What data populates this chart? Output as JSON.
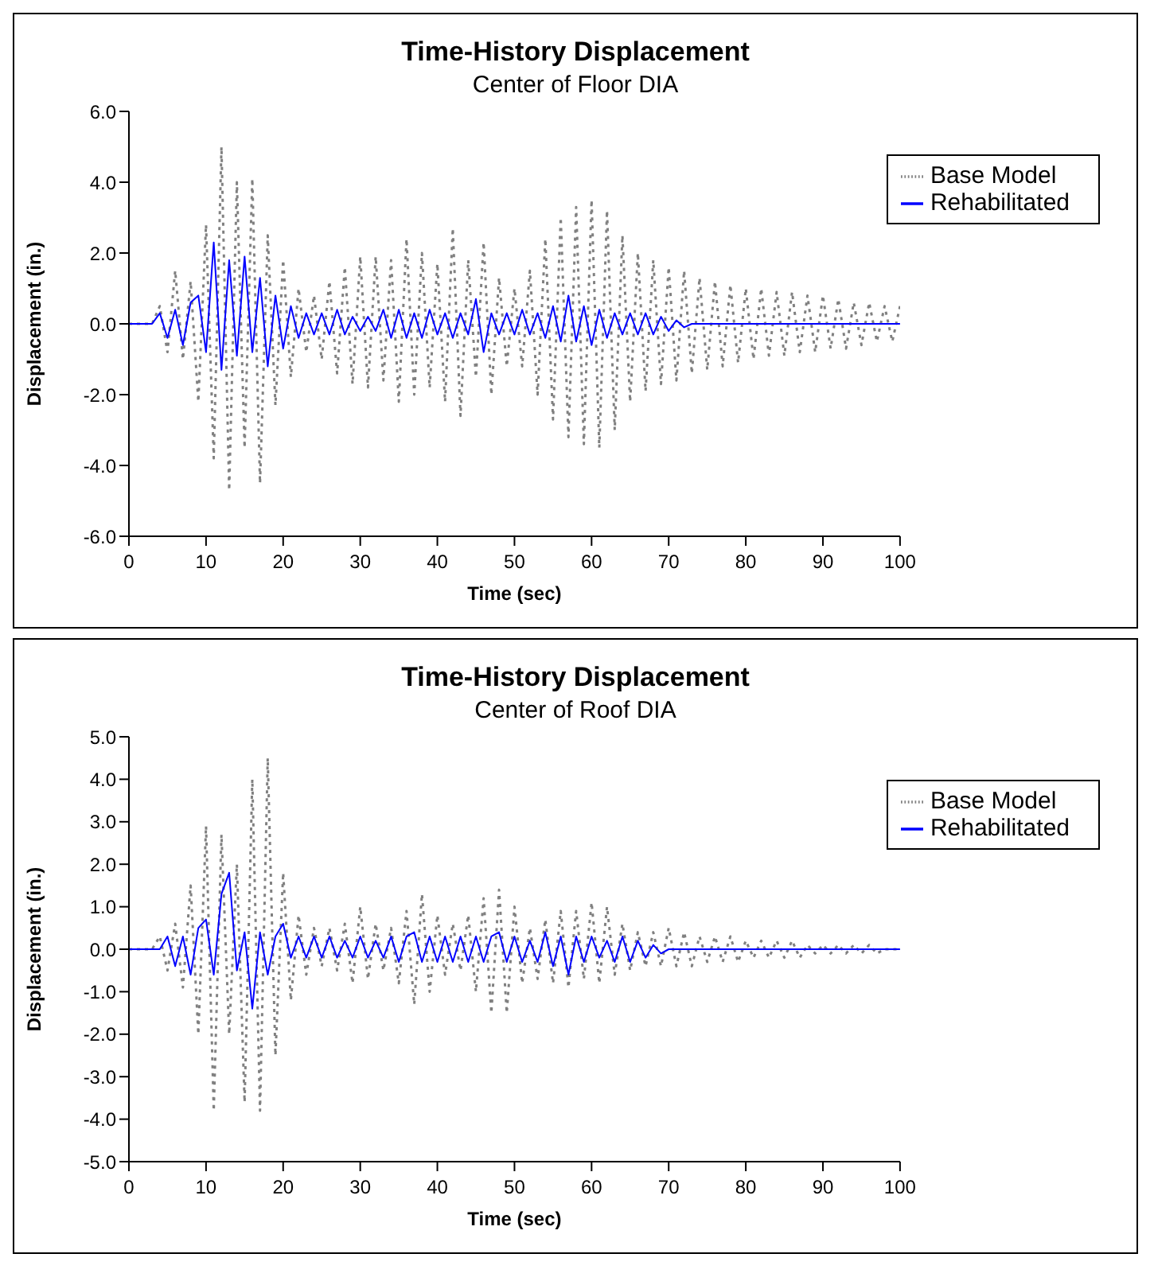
{
  "chart_data": [
    {
      "type": "line",
      "title": "Time-History Displacement",
      "subtitle": "Center of Floor DIA",
      "xlabel": "Time (sec)",
      "ylabel": "Displacement (in.)",
      "legend": "top right",
      "marker": "none",
      "x": [
        0,
        1,
        2,
        3,
        4,
        5,
        6,
        7,
        8,
        9,
        10,
        11,
        12,
        13,
        14,
        15,
        16,
        17,
        18,
        19,
        20,
        21,
        22,
        23,
        24,
        25,
        26,
        27,
        28,
        29,
        30,
        31,
        32,
        33,
        34,
        35,
        36,
        37,
        38,
        39,
        40,
        41,
        42,
        43,
        44,
        45,
        46,
        47,
        48,
        49,
        50,
        51,
        52,
        53,
        54,
        55,
        56,
        57,
        58,
        59,
        60,
        61,
        62,
        63,
        64,
        65,
        66,
        67,
        68,
        69,
        70,
        71,
        72,
        73,
        74,
        75,
        76,
        77,
        78,
        79,
        80,
        81,
        82,
        83,
        84,
        85,
        86,
        87,
        88,
        89,
        90,
        91,
        92,
        93,
        94,
        95,
        96,
        97,
        98,
        99,
        100
      ],
      "xlim": [
        0,
        100
      ],
      "xticks": [
        0,
        10,
        20,
        30,
        40,
        50,
        60,
        70,
        80,
        90,
        100
      ],
      "ylim": [
        -6,
        6
      ],
      "yticks": [
        {
          "value": -6,
          "label": "-6.0"
        },
        {
          "value": -4,
          "label": "-4.0"
        },
        {
          "value": -2,
          "label": "-2.0"
        },
        {
          "value": 0,
          "label": "0.0"
        },
        {
          "value": 2,
          "label": "2.0"
        },
        {
          "value": 4,
          "label": "4.0"
        },
        {
          "value": 6,
          "label": "6.0"
        }
      ],
      "series": [
        {
          "name": "Base Model",
          "color": "#808080",
          "line_style": "dotted",
          "values": [
            0,
            0,
            0,
            0,
            0.5,
            -0.8,
            1.5,
            -1.0,
            1.2,
            -2.2,
            2.8,
            -3.8,
            5.0,
            -4.7,
            4.0,
            -3.5,
            4.1,
            -4.5,
            2.5,
            -2.3,
            1.8,
            -1.5,
            1.0,
            -0.8,
            0.8,
            -1.0,
            1.2,
            -1.4,
            1.6,
            -1.7,
            1.9,
            -1.8,
            1.9,
            -1.6,
            1.8,
            -2.2,
            2.4,
            -2.0,
            2.0,
            -1.8,
            1.7,
            -2.2,
            2.7,
            -2.6,
            1.8,
            -1.5,
            2.3,
            -2.0,
            1.3,
            -1.2,
            1.0,
            -1.2,
            1.5,
            -2.0,
            2.4,
            -2.7,
            3.0,
            -3.2,
            3.3,
            -3.4,
            3.5,
            -3.5,
            3.2,
            -3.0,
            2.5,
            -2.2,
            2.0,
            -1.9,
            1.8,
            -1.7,
            1.6,
            -1.6,
            1.5,
            -1.4,
            1.3,
            -1.3,
            1.2,
            -1.2,
            1.1,
            -1.1,
            1.0,
            -1.0,
            1.0,
            -0.9,
            0.9,
            -0.9,
            0.9,
            -0.8,
            0.8,
            -0.8,
            0.8,
            -0.7,
            0.7,
            -0.7,
            0.6,
            -0.6,
            0.6,
            -0.5,
            0.5,
            -0.5,
            0.5
          ]
        },
        {
          "name": "Rehabilitated",
          "color": "#0000ff",
          "line_style": "solid",
          "values": [
            0,
            0,
            0,
            0,
            0.3,
            -0.4,
            0.4,
            -0.6,
            0.6,
            0.8,
            -0.8,
            2.3,
            -1.3,
            1.8,
            -0.9,
            1.9,
            -0.8,
            1.3,
            -1.2,
            0.8,
            -0.7,
            0.5,
            -0.4,
            0.3,
            -0.3,
            0.3,
            -0.3,
            0.4,
            -0.3,
            0.2,
            -0.2,
            0.2,
            -0.2,
            0.4,
            -0.4,
            0.4,
            -0.4,
            0.3,
            -0.4,
            0.4,
            -0.3,
            0.3,
            -0.4,
            0.3,
            -0.3,
            0.7,
            -0.8,
            0.3,
            -0.3,
            0.3,
            -0.3,
            0.4,
            -0.3,
            0.3,
            -0.4,
            0.5,
            -0.5,
            0.8,
            -0.5,
            0.5,
            -0.6,
            0.4,
            -0.4,
            0.3,
            -0.3,
            0.3,
            -0.3,
            0.3,
            -0.3,
            0.2,
            -0.2,
            0.1,
            -0.1,
            0,
            0,
            0,
            0,
            0,
            0,
            0,
            0,
            0,
            0,
            0,
            0,
            0,
            0,
            0,
            0,
            0,
            0,
            0,
            0,
            0,
            0,
            0,
            0,
            0,
            0,
            0,
            0
          ]
        }
      ]
    },
    {
      "type": "line",
      "title": "Time-History Displacement",
      "subtitle": "Center of Roof DIA",
      "xlabel": "Time (sec)",
      "ylabel": "Displacement (in.)",
      "legend": "top right",
      "marker": "none",
      "x": [
        0,
        1,
        2,
        3,
        4,
        5,
        6,
        7,
        8,
        9,
        10,
        11,
        12,
        13,
        14,
        15,
        16,
        17,
        18,
        19,
        20,
        21,
        22,
        23,
        24,
        25,
        26,
        27,
        28,
        29,
        30,
        31,
        32,
        33,
        34,
        35,
        36,
        37,
        38,
        39,
        40,
        41,
        42,
        43,
        44,
        45,
        46,
        47,
        48,
        49,
        50,
        51,
        52,
        53,
        54,
        55,
        56,
        57,
        58,
        59,
        60,
        61,
        62,
        63,
        64,
        65,
        66,
        67,
        68,
        69,
        70,
        71,
        72,
        73,
        74,
        75,
        76,
        77,
        78,
        79,
        80,
        81,
        82,
        83,
        84,
        85,
        86,
        87,
        88,
        89,
        90,
        91,
        92,
        93,
        94,
        95,
        96,
        97,
        98,
        99,
        100
      ],
      "xlim": [
        0,
        100
      ],
      "xticks": [
        0,
        10,
        20,
        30,
        40,
        50,
        60,
        70,
        80,
        90,
        100
      ],
      "ylim": [
        -5,
        5
      ],
      "yticks": [
        {
          "value": -5,
          "label": "-5.0"
        },
        {
          "value": -4,
          "label": "-4.0"
        },
        {
          "value": -3,
          "label": "-3.0"
        },
        {
          "value": -2,
          "label": "-2.0"
        },
        {
          "value": -1,
          "label": "-1.0"
        },
        {
          "value": 0,
          "label": "0.0"
        },
        {
          "value": 1,
          "label": "1.0"
        },
        {
          "value": 2,
          "label": "2.0"
        },
        {
          "value": 3,
          "label": "3.0"
        },
        {
          "value": 4,
          "label": "4.0"
        },
        {
          "value": 5,
          "label": "5.0"
        }
      ],
      "series": [
        {
          "name": "Base Model",
          "color": "#808080",
          "line_style": "dotted",
          "values": [
            0,
            0,
            0,
            0,
            0.3,
            -0.5,
            0.6,
            -0.9,
            1.5,
            -2.0,
            2.9,
            -3.8,
            2.7,
            -2.0,
            2.0,
            -3.6,
            4.0,
            -3.8,
            4.5,
            -2.5,
            1.8,
            -1.2,
            0.8,
            -0.6,
            0.5,
            -0.4,
            0.5,
            -0.5,
            0.6,
            -0.8,
            1.0,
            -0.7,
            0.6,
            -0.5,
            0.5,
            -0.8,
            0.9,
            -1.3,
            1.3,
            -1.0,
            0.8,
            -0.6,
            0.6,
            -0.5,
            0.8,
            -1.0,
            1.2,
            -1.5,
            1.4,
            -1.5,
            1.0,
            -0.8,
            0.5,
            -0.7,
            0.7,
            -0.8,
            0.9,
            -0.9,
            0.9,
            -0.7,
            1.1,
            -0.8,
            1.0,
            -0.6,
            0.6,
            -0.5,
            0.4,
            -0.4,
            0.4,
            -0.4,
            0.5,
            -0.4,
            0.4,
            -0.4,
            0.3,
            -0.3,
            0.3,
            -0.3,
            0.3,
            -0.3,
            0.2,
            -0.2,
            0.2,
            -0.2,
            0.2,
            -0.2,
            0.2,
            -0.2,
            0.1,
            -0.1,
            0.1,
            -0.1,
            0.1,
            -0.1,
            0.1,
            -0.1,
            0.1,
            -0.1,
            0,
            0,
            0
          ]
        },
        {
          "name": "Rehabilitated",
          "color": "#0000ff",
          "line_style": "solid",
          "values": [
            0,
            0,
            0,
            0,
            0,
            0.3,
            -0.4,
            0.3,
            -0.6,
            0.5,
            0.7,
            -0.6,
            1.3,
            1.8,
            -0.5,
            0.4,
            -1.4,
            0.4,
            -0.6,
            0.3,
            0.6,
            -0.2,
            0.3,
            -0.2,
            0.3,
            -0.2,
            0.3,
            -0.2,
            0.2,
            -0.2,
            0.3,
            -0.2,
            0.2,
            -0.2,
            0.3,
            -0.3,
            0.3,
            0.4,
            -0.3,
            0.3,
            -0.3,
            0.3,
            -0.3,
            0.3,
            -0.3,
            0.3,
            -0.3,
            0.3,
            0.4,
            -0.3,
            0.3,
            -0.3,
            0.2,
            -0.3,
            0.4,
            -0.4,
            0.3,
            -0.6,
            0.3,
            -0.3,
            0.3,
            -0.2,
            0.2,
            -0.3,
            0.3,
            -0.3,
            0.2,
            -0.2,
            0.1,
            -0.1,
            0,
            0,
            0,
            0,
            0,
            0,
            0,
            0,
            0,
            0,
            0,
            0,
            0,
            0,
            0,
            0,
            0,
            0,
            0,
            0,
            0,
            0,
            0,
            0,
            0,
            0,
            0,
            0,
            0,
            0,
            0
          ]
        }
      ]
    }
  ]
}
